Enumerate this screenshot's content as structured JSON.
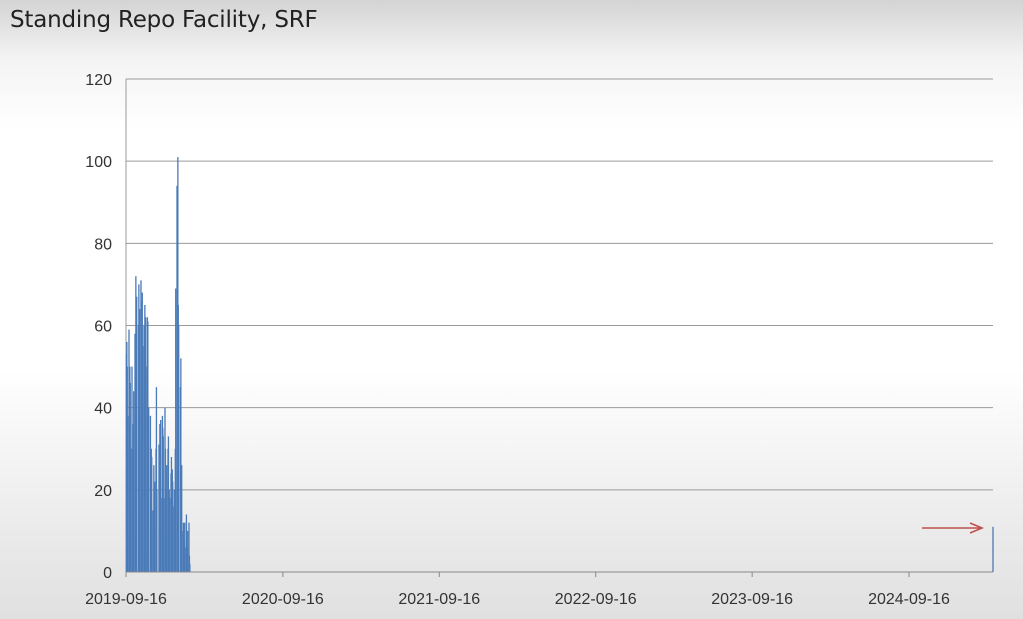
{
  "chart_data": {
    "type": "bar",
    "title": "Standing Repo Facility, SRF",
    "xlabel": "",
    "ylabel": "",
    "ylim": [
      0,
      120
    ],
    "yticks": [
      0,
      20,
      40,
      60,
      80,
      100,
      120
    ],
    "xlim": [
      "2019-09-16",
      "2025-03-31"
    ],
    "xticks": [
      "2019-09-16",
      "2020-09-16",
      "2021-09-16",
      "2022-09-16",
      "2023-09-16",
      "2024-09-16"
    ],
    "grid": true,
    "color": "#4a7ab8",
    "annotation_arrow_color": "#c0504d",
    "x": [
      "2019-09-17",
      "2019-09-18",
      "2019-09-19",
      "2019-09-20",
      "2019-09-23",
      "2019-09-24",
      "2019-09-25",
      "2019-09-26",
      "2019-09-27",
      "2019-09-30",
      "2019-10-01",
      "2019-10-02",
      "2019-10-03",
      "2019-10-04",
      "2019-10-07",
      "2019-10-08",
      "2019-10-09",
      "2019-10-10",
      "2019-10-11",
      "2019-10-15",
      "2019-10-16",
      "2019-10-17",
      "2019-10-18",
      "2019-10-21",
      "2019-10-22",
      "2019-10-23",
      "2019-10-24",
      "2019-10-25",
      "2019-10-28",
      "2019-10-29",
      "2019-10-30",
      "2019-10-31",
      "2019-11-01",
      "2019-11-04",
      "2019-11-05",
      "2019-11-06",
      "2019-11-07",
      "2019-11-08",
      "2019-11-12",
      "2019-11-13",
      "2019-11-14",
      "2019-11-15",
      "2019-11-18",
      "2019-11-19",
      "2019-11-20",
      "2019-11-21",
      "2019-11-22",
      "2019-11-25",
      "2019-11-26",
      "2019-11-27",
      "2019-12-02",
      "2019-12-03",
      "2019-12-04",
      "2019-12-05",
      "2019-12-06",
      "2019-12-09",
      "2019-12-10",
      "2019-12-11",
      "2019-12-12",
      "2019-12-13",
      "2019-12-16",
      "2019-12-17",
      "2019-12-18",
      "2019-12-19",
      "2019-12-20",
      "2019-12-23",
      "2019-12-24",
      "2019-12-26",
      "2019-12-27",
      "2019-12-30",
      "2019-12-31",
      "2020-01-02",
      "2020-01-03",
      "2020-01-06",
      "2020-01-07",
      "2020-01-08",
      "2020-01-09",
      "2020-01-10",
      "2020-01-13",
      "2020-01-14",
      "2020-01-15",
      "2020-01-16",
      "2020-01-17",
      "2020-01-21",
      "2020-01-22",
      "2020-01-23",
      "2020-01-24",
      "2020-01-27",
      "2020-01-28",
      "2020-01-29",
      "2020-01-30",
      "2020-01-31",
      "2020-02-03",
      "2020-02-04",
      "2020-02-05",
      "2020-02-06",
      "2020-02-07",
      "2020-02-10",
      "2020-02-11",
      "2020-02-12",
      "2020-02-13",
      "2020-02-14",
      "2020-02-18",
      "2020-02-19",
      "2020-02-20",
      "2020-02-21",
      "2020-02-24",
      "2020-02-25",
      "2020-02-26",
      "2020-02-27",
      "2020-02-28",
      "2020-03-02",
      "2020-03-03",
      "2020-03-04",
      "2020-03-05",
      "2020-03-06",
      "2020-03-09",
      "2020-03-10",
      "2020-03-11",
      "2020-03-12",
      "2020-03-13",
      "2020-03-16",
      "2020-03-17",
      "2020-03-18",
      "2020-03-19",
      "2020-03-20",
      "2020-03-23",
      "2020-03-24",
      "2020-03-25",
      "2020-03-26",
      "2020-03-27",
      "2020-03-30",
      "2020-03-31",
      "2020-04-01",
      "2020-04-02",
      "2020-04-03",
      "2020-04-06",
      "2020-04-07",
      "2020-04-08",
      "2020-04-09",
      "2020-04-13",
      "2020-04-14",
      "2020-04-15",
      "2020-04-16",
      "2020-04-17",
      "2020-04-20",
      "2020-04-21",
      "2020-04-22",
      "2020-04-23",
      "2020-04-24",
      "2020-04-27",
      "2020-04-28",
      "2020-04-29",
      "2020-04-30",
      "2020-05-01",
      "2020-05-04",
      "2020-05-05",
      "2020-05-06",
      "2020-05-07",
      "2020-05-08",
      "2020-05-11",
      "2020-05-12",
      "2020-05-13",
      "2020-05-14",
      "2020-05-15",
      "2020-05-18",
      "2020-05-19",
      "2020-05-20",
      "2020-05-21",
      "2020-05-22",
      "2020-05-26",
      "2020-05-27",
      "2020-05-28",
      "2020-05-29",
      "2020-06-01",
      "2020-06-02",
      "2020-06-03",
      "2020-06-04",
      "2020-06-05",
      "2020-06-08",
      "2020-06-09",
      "2020-06-10",
      "2020-06-11",
      "2020-06-12",
      "2020-06-15",
      "2020-06-16",
      "2020-06-17",
      "2020-06-18",
      "2020-06-19",
      "2020-06-22",
      "2020-06-23",
      "2020-06-24",
      "2020-06-25",
      "2020-06-26",
      "2020-06-29",
      "2020-06-30",
      "2020-07-01",
      "2020-07-02",
      "2020-07-06",
      "2020-07-07",
      "2020-07-08",
      "2020-07-09",
      "2020-07-10",
      "2020-07-13",
      "2020-07-14",
      "2020-07-15",
      "2020-07-16",
      "2020-07-17",
      "2020-07-20",
      "2020-07-21",
      "2025-03-31"
    ],
    "values": [
      53,
      56,
      50,
      38,
      59,
      48,
      50,
      46,
      30,
      50,
      15,
      30,
      36,
      44,
      58,
      20,
      72,
      50,
      67,
      60,
      70,
      50,
      64,
      71,
      58,
      66,
      68,
      55,
      60,
      55,
      65,
      61,
      62,
      50,
      62,
      61,
      25,
      40,
      38,
      20,
      30,
      28,
      15,
      12,
      26,
      20,
      22,
      30,
      45,
      20,
      31,
      25,
      36,
      22,
      37,
      18,
      38,
      35,
      33,
      18,
      40,
      30,
      20,
      15,
      26,
      30,
      33,
      20,
      18,
      24,
      28,
      25,
      22,
      16,
      20,
      12,
      30,
      69,
      94,
      80,
      101,
      65,
      60,
      45,
      52,
      23,
      26,
      10,
      12,
      5,
      8,
      12,
      6,
      14,
      4,
      6,
      10,
      12,
      4,
      2,
      0,
      0,
      0,
      0,
      0,
      0,
      0,
      0,
      0,
      0,
      0,
      0,
      0,
      0,
      0,
      0,
      0,
      0,
      0,
      0,
      0,
      0,
      0,
      0,
      0,
      0,
      0,
      0,
      0,
      0,
      0,
      0,
      0,
      0,
      0,
      0,
      0,
      0,
      0,
      0,
      0,
      0,
      0,
      0,
      0,
      0,
      0,
      0,
      0,
      0,
      0,
      0,
      0,
      0,
      0,
      0,
      0,
      0,
      0,
      0,
      0,
      0,
      0,
      0,
      0,
      0,
      0,
      0,
      0,
      0,
      0,
      0,
      0,
      0,
      0,
      0,
      0,
      0,
      0,
      0,
      0,
      0,
      0,
      0,
      0,
      0,
      0,
      0,
      0,
      0,
      0,
      0,
      0,
      0,
      0,
      0,
      0,
      0,
      0,
      0,
      0,
      0,
      0,
      0,
      0,
      0,
      0,
      0,
      0,
      0,
      11
    ]
  }
}
